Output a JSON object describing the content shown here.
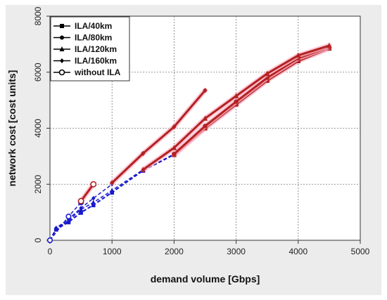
{
  "chart_data": {
    "type": "line",
    "xlabel": "demand volume [Gbps]",
    "ylabel": "network cost [cost units]",
    "xlim": [
      0,
      5000
    ],
    "ylim": [
      0,
      8000
    ],
    "xticks": [
      "0",
      "1000",
      "2000",
      "3000",
      "4000",
      "5000"
    ],
    "yticks": [
      "0",
      "2000",
      "4000",
      "6000",
      "8000"
    ],
    "grid": true,
    "legend_position": "top-left",
    "series": [
      {
        "name": "ILA/40km",
        "marker": "square",
        "segments": [
          {
            "color": "#1a1acc",
            "points": [
              [
                0,
                0
              ],
              [
                100,
                380
              ],
              [
                300,
                640
              ],
              [
                500,
                980
              ],
              [
                700,
                1250
              ],
              [
                1000,
                1700
              ],
              [
                1500,
                2480
              ],
              [
                2000,
                3050
              ]
            ]
          },
          {
            "color": "#b22222",
            "points": [
              [
                2000,
                3050
              ],
              [
                2500,
                4000
              ],
              [
                3000,
                4850
              ],
              [
                3500,
                5700
              ],
              [
                4000,
                6400
              ],
              [
                4500,
                6850
              ]
            ]
          }
        ]
      },
      {
        "name": "ILA/80km",
        "marker": "circle",
        "segments": [
          {
            "color": "#1a1acc",
            "points": [
              [
                0,
                0
              ],
              [
                100,
                400
              ],
              [
                300,
                660
              ],
              [
                500,
                1000
              ],
              [
                700,
                1270
              ],
              [
                1000,
                1720
              ],
              [
                1500,
                2490
              ],
              [
                2000,
                3080
              ]
            ]
          },
          {
            "color": "#b22222",
            "points": [
              [
                2000,
                3080
              ],
              [
                2500,
                4080
              ],
              [
                3000,
                4950
              ],
              [
                3500,
                5800
              ],
              [
                4000,
                6500
              ],
              [
                4500,
                6900
              ]
            ]
          }
        ]
      },
      {
        "name": "ILA/120km",
        "marker": "triangle",
        "segments": [
          {
            "color": "#1a1acc",
            "points": [
              [
                0,
                0
              ],
              [
                100,
                420
              ],
              [
                300,
                700
              ],
              [
                500,
                1100
              ],
              [
                700,
                1350
              ],
              [
                1000,
                1780
              ],
              [
                1500,
                2520
              ]
            ]
          },
          {
            "color": "#b22222",
            "points": [
              [
                1500,
                2520
              ],
              [
                2000,
                3300
              ],
              [
                2500,
                4350
              ],
              [
                3000,
                5150
              ],
              [
                3500,
                5950
              ],
              [
                4000,
                6600
              ],
              [
                4500,
                6950
              ]
            ]
          }
        ]
      },
      {
        "name": "ILA/160km",
        "marker": "diamond",
        "segments": [
          {
            "color": "#1a1acc",
            "points": [
              [
                0,
                0
              ],
              [
                100,
                440
              ],
              [
                300,
                760
              ],
              [
                500,
                1150
              ],
              [
                700,
                1500
              ],
              [
                1000,
                2000
              ]
            ]
          },
          {
            "color": "#b22222",
            "points": [
              [
                1000,
                2050
              ],
              [
                1500,
                3100
              ],
              [
                2000,
                4050
              ],
              [
                2500,
                5350
              ]
            ]
          }
        ]
      },
      {
        "name": "without ILA",
        "marker": "open-circle",
        "segments": [
          {
            "color": "#1a1acc",
            "points": [
              [
                0,
                0
              ],
              [
                300,
                850
              ],
              [
                500,
                1350
              ]
            ]
          },
          {
            "color": "#b22222",
            "points": [
              [
                500,
                1400
              ],
              [
                700,
                2000
              ]
            ]
          }
        ]
      }
    ]
  }
}
